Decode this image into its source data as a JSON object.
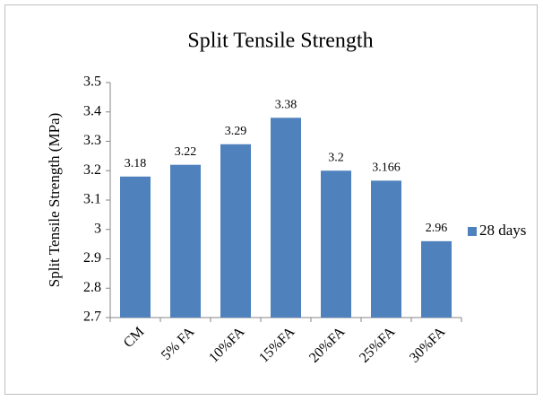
{
  "chart_data": {
    "type": "bar",
    "title": "Split Tensile Strength",
    "ylabel": "Split Tensile Strength (MPa)",
    "categories": [
      "CM",
      "5% FA",
      "10%FA",
      "15%FA",
      "20%FA",
      "25%FA",
      "30%FA"
    ],
    "series": [
      {
        "name": "28 days",
        "color": "#4f81bd",
        "values": [
          3.18,
          3.22,
          3.29,
          3.38,
          3.2,
          3.166,
          2.96
        ]
      }
    ],
    "ylim": [
      2.7,
      3.5
    ],
    "yticks": [
      2.7,
      2.8,
      2.9,
      3,
      3.1,
      3.2,
      3.3,
      3.4,
      3.5
    ],
    "grid": false,
    "legend": "right"
  }
}
